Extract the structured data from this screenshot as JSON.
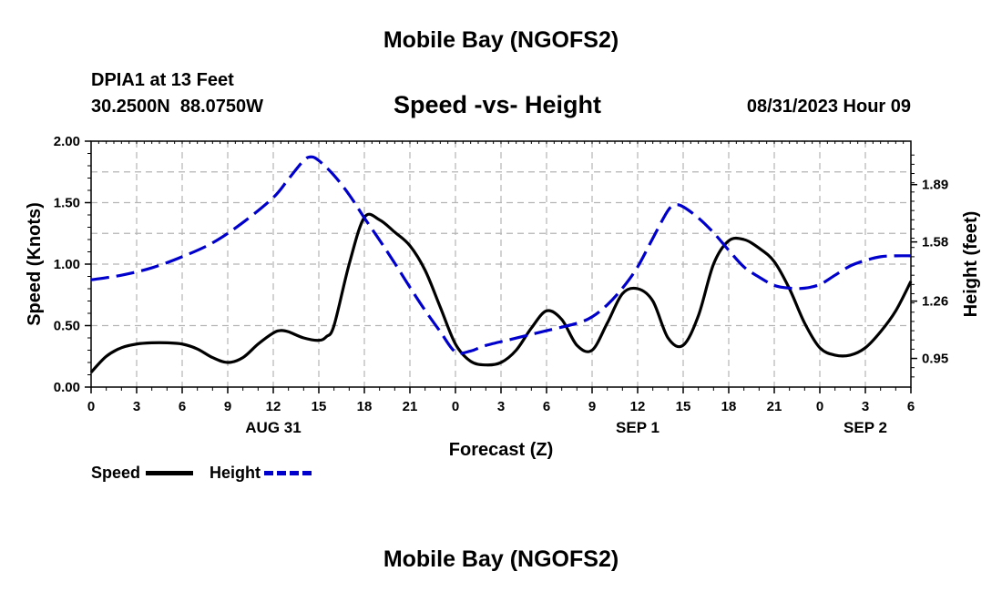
{
  "header": {
    "title": "Mobile Bay (NGOFS2)",
    "station": "DPIA1 at 13 Feet",
    "coords": "30.2500N  88.0750W",
    "datetime": "08/31/2023 Hour 09",
    "footer_title": "Mobile Bay (NGOFS2)"
  },
  "chart_data": {
    "type": "line",
    "title": "Speed -vs- Height",
    "xlabel": "Forecast (Z)",
    "ylabel": "Speed (Knots)",
    "ylabel_right": "Height (feet)",
    "xlim": [
      0,
      54
    ],
    "ylim": [
      0,
      2
    ],
    "y2lim": [
      0.795,
      2.125
    ],
    "x_ticks": [
      0,
      3,
      6,
      9,
      12,
      15,
      18,
      21,
      24,
      27,
      30,
      33,
      36,
      39,
      42,
      45,
      48,
      51,
      54
    ],
    "x_tick_labels": [
      "0",
      "3",
      "6",
      "9",
      "12",
      "15",
      "18",
      "21",
      "0",
      "3",
      "6",
      "9",
      "12",
      "15",
      "18",
      "21",
      "0",
      "3",
      "6"
    ],
    "y_tick_labels": [
      "0.00",
      "0.50",
      "1.00",
      "1.50",
      "2.00"
    ],
    "y_ticks": [
      0,
      0.5,
      1.0,
      1.5,
      2.0
    ],
    "y2_ticks": [
      0.95,
      1.26,
      1.58,
      1.89
    ],
    "y2_tick_labels": [
      "0.95",
      "1.26",
      "1.58",
      "1.89"
    ],
    "date_labels": [
      {
        "x": 12,
        "label": "AUG 31"
      },
      {
        "x": 36,
        "label": "SEP 1"
      },
      {
        "x": 51,
        "label": "SEP 2"
      }
    ],
    "grid": true,
    "legend_position": "bottom-left",
    "series": [
      {
        "name": "Speed",
        "color": "#000000",
        "style": "solid",
        "axis": "left",
        "x": [
          0,
          1,
          2,
          3,
          4,
          5,
          6,
          7,
          8,
          9,
          10,
          11,
          12,
          12.5,
          13,
          14,
          15,
          15.5,
          16,
          17,
          18,
          19,
          20,
          21,
          22,
          23,
          24,
          25,
          26,
          27,
          28,
          29,
          30,
          31,
          32,
          33,
          34,
          35,
          36,
          37,
          38,
          39,
          40,
          41,
          42,
          43,
          44,
          45,
          46,
          47,
          48,
          49,
          50,
          51,
          52,
          53,
          54
        ],
        "y": [
          0.12,
          0.25,
          0.32,
          0.35,
          0.36,
          0.36,
          0.35,
          0.31,
          0.24,
          0.2,
          0.24,
          0.35,
          0.44,
          0.46,
          0.45,
          0.4,
          0.38,
          0.41,
          0.5,
          1.0,
          1.38,
          1.36,
          1.26,
          1.15,
          0.95,
          0.65,
          0.35,
          0.21,
          0.18,
          0.2,
          0.3,
          0.48,
          0.62,
          0.55,
          0.34,
          0.3,
          0.52,
          0.76,
          0.8,
          0.7,
          0.4,
          0.34,
          0.58,
          1.0,
          1.19,
          1.2,
          1.13,
          1.02,
          0.8,
          0.52,
          0.32,
          0.26,
          0.26,
          0.32,
          0.45,
          0.62,
          0.86
        ]
      },
      {
        "name": "Height",
        "color": "#0000cc",
        "style": "dashed",
        "axis": "right",
        "x": [
          0,
          2,
          4,
          6,
          8,
          10,
          12,
          13,
          14,
          14.5,
          15,
          16,
          17,
          18,
          19,
          20,
          21,
          22,
          23,
          24,
          25,
          26,
          28,
          30,
          32,
          33,
          34,
          35,
          36,
          37,
          38,
          38.5,
          39,
          40,
          41,
          42,
          43,
          44,
          45,
          46,
          47,
          48,
          49,
          50,
          51,
          52,
          53,
          54
        ],
        "y": [
          1.375,
          1.4,
          1.44,
          1.5,
          1.575,
          1.685,
          1.82,
          1.92,
          2.02,
          2.04,
          2.02,
          1.94,
          1.835,
          1.71,
          1.59,
          1.465,
          1.335,
          1.21,
          1.095,
          0.985,
          0.99,
          1.02,
          1.06,
          1.1,
          1.14,
          1.175,
          1.24,
          1.33,
          1.445,
          1.6,
          1.75,
          1.78,
          1.77,
          1.71,
          1.63,
          1.535,
          1.445,
          1.39,
          1.345,
          1.33,
          1.33,
          1.35,
          1.4,
          1.45,
          1.48,
          1.5,
          1.505,
          1.505
        ]
      }
    ]
  }
}
